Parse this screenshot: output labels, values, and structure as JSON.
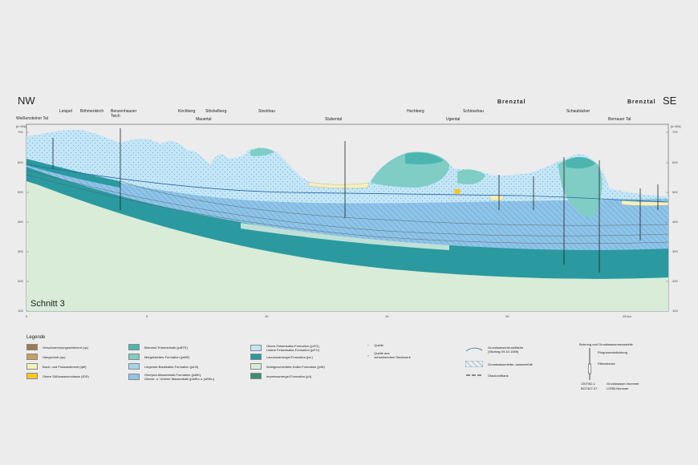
{
  "header": {
    "dir_left": "NW",
    "dir_right": "SE",
    "brenztal_left": "Brenztal",
    "brenztal_right": "Brenztal",
    "section_title": "Schnitt 3"
  },
  "localities": [
    "Weißensteiner Tal",
    "Leispel",
    "Böhmenkirch",
    "Benzenhauser Teich",
    "Kirchberg",
    "Stöckelberg",
    "Mauertal",
    "Stockhau",
    "Stubental",
    "Hochberg",
    "Ugental",
    "Schlosshau",
    "Schaubäcker",
    "Bernauer Tal"
  ],
  "axes": {
    "unit": "[m NN]",
    "elevation_ticks": [
      "700",
      "600",
      "500",
      "400",
      "300",
      "200",
      "100"
    ],
    "distance_ticks": [
      "0",
      "5",
      "10",
      "15",
      "20",
      "25 km"
    ]
  },
  "legend": {
    "title": "Legende",
    "col1": [
      {
        "label": "Verschwemmungssediment (qz)",
        "color": "#a07850"
      },
      {
        "label": "Hangschutt (qu)",
        "color": "#c8a060"
      },
      {
        "label": "Bach- und Flusssediment (qbf)",
        "color": "#f5f0b8"
      },
      {
        "label": "Obere Süßwassermolasse (tOS)",
        "color": "#f5c820"
      }
    ],
    "col2": [
      {
        "label": "Brenztal-Trümmerkalk (joBTK)",
        "color": "#4db5b0"
      },
      {
        "label": "Mergelstetten-Formation (joME)",
        "color": "#7fcdc5"
      },
      {
        "label": "Liegende-Bankkalke-Formation (joLB)",
        "color": "#a6d4ee"
      },
      {
        "label": "Oberjura-Massenkalk-Formation (joMK),\nOberer- u. Unterer Massenkalk (joMKo u. joMKu)",
        "color": "#8ec4e8"
      }
    ],
    "col3": [
      {
        "label": "Obere-Felsenkalke-Formation (joFO),\nUntere Felsenkalke-Formation (joFU)",
        "color": "#c3e6f7"
      },
      {
        "label": "Lacunosamergel-Formation (joL)",
        "color": "#2a9aa0"
      },
      {
        "label": "Wohlgeschichtete-Kalke-Formation (joW)",
        "color": "#d8ecd8"
      },
      {
        "label": "Impressamergel-Formation (joI)",
        "color": "#3d8c78"
      }
    ],
    "col4": [
      {
        "label": "Quelle"
      },
      {
        "label": "Quelle aus\nschwebendem Stockwerk"
      }
    ],
    "col5": [
      {
        "label": "Grundwasserdruckfläche\n(Stichtag 09.10.1989)"
      },
      {
        "label": "Grundwasserleiter, wasserefüllt"
      },
      {
        "label": "Glaukonitbank"
      }
    ],
    "col6": {
      "title": "Bohrung und Grundwassermessstelle",
      "filter": "Ringraumabdichtung",
      "screen": "Filterstrecke",
      "num1": "1307/62-1",
      "num2": "BO7327-57",
      "gw_label": "Grundwasser-Nummer",
      "lgrb_label": "LGRB-Nummer"
    }
  },
  "colors": {
    "background": "#ececec",
    "joMK": "#8ec4e8",
    "joFO": "#c3e6f7",
    "joL": "#2a9aa0",
    "joW": "#d8ecd8",
    "joI": "#3d8c78",
    "joME": "#7fcdc5",
    "joBTK": "#4db5b0",
    "sediment": "#f5f0b8",
    "tOS": "#f5c820"
  }
}
